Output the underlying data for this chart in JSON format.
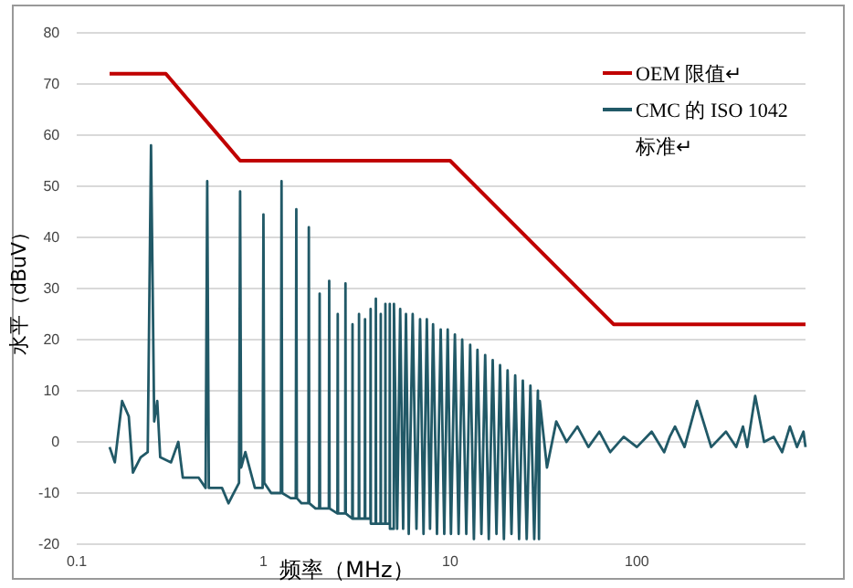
{
  "chart_data": {
    "type": "line",
    "xlabel": "频率（MHz）",
    "ylabel": "水平（dBuV）",
    "log": "x",
    "xlim": [
      0.1,
      800
    ],
    "xticks": [
      0.1,
      1,
      10,
      100
    ],
    "ylim": [
      -20,
      80
    ],
    "yticks": [
      -20,
      -10,
      0,
      10,
      20,
      30,
      40,
      50,
      60,
      70,
      80
    ],
    "grid": "y",
    "legend": "top right",
    "series": [
      {
        "name": "OEM 限值↵",
        "color": "#c00000",
        "x": [
          0.15,
          0.3,
          0.75,
          10,
          75,
          800
        ],
        "values": [
          72,
          72,
          55,
          55,
          23,
          23
        ]
      },
      {
        "name": "CMC 的 ISO 1042 标准↵",
        "color": "#215967",
        "x": [
          0.15,
          0.16,
          0.175,
          0.19,
          0.2,
          0.22,
          0.24,
          0.25,
          0.26,
          0.27,
          0.28,
          0.32,
          0.35,
          0.37,
          0.45,
          0.49,
          0.5,
          0.51,
          0.6,
          0.65,
          0.74,
          0.75,
          0.76,
          0.8,
          0.9,
          0.99,
          1.0,
          1.01,
          1.1,
          1.24,
          1.25,
          1.26,
          1.4,
          1.49,
          1.5,
          1.51,
          1.6,
          1.74,
          1.75,
          1.76,
          1.9,
          1.99,
          2.0,
          2.01,
          2.24,
          2.25,
          2.26,
          2.49,
          2.5,
          2.51,
          2.74,
          2.75,
          2.76,
          2.99,
          3.0,
          3.01,
          3.24,
          3.25,
          3.26,
          3.49,
          3.5,
          3.51,
          3.74,
          3.75,
          3.76,
          3.99,
          4.0,
          4.01,
          4.24,
          4.25,
          4.26,
          4.49,
          4.5,
          4.51,
          4.74,
          4.75,
          4.76,
          4.99,
          5.0,
          5.2,
          5.4,
          5.6,
          5.8,
          6.0,
          6.3,
          6.6,
          6.9,
          7.2,
          7.5,
          7.8,
          8.1,
          8.5,
          8.9,
          9.3,
          9.7,
          10.1,
          10.6,
          11.1,
          11.6,
          12.2,
          12.8,
          13.4,
          14.0,
          14.7,
          15.4,
          16.1,
          16.9,
          17.7,
          18.5,
          19.4,
          20.3,
          21.3,
          22.3,
          23.4,
          24.5,
          25.7,
          26.9,
          28.2,
          29.5,
          29.9,
          30.2,
          33,
          37,
          42,
          48,
          55,
          63,
          72,
          85,
          100,
          120,
          140,
          150,
          160,
          180,
          210,
          250,
          300,
          340,
          370,
          390,
          430,
          480,
          540,
          600,
          660,
          720,
          780,
          800
        ],
        "values": [
          -1,
          -4,
          8,
          5,
          -6,
          -3,
          -2,
          58,
          4,
          8,
          -3,
          -4,
          0,
          -7,
          -7,
          -9,
          51,
          -9,
          -9,
          -12,
          -8,
          49,
          -5,
          -2,
          -9,
          -9,
          44.5,
          -8,
          -10,
          -10,
          51,
          -10,
          -11,
          -11,
          45.5,
          -11,
          -12,
          -12,
          42,
          -12,
          -13,
          -13,
          29,
          -13,
          -13,
          31.5,
          -13,
          -14,
          25,
          -14,
          -14,
          31,
          -14,
          -15,
          23,
          -15,
          -15,
          25,
          -15,
          -15,
          24,
          -15,
          -15,
          26,
          -16,
          -16,
          28,
          -16,
          -16,
          25,
          -16,
          -16,
          27,
          -16,
          -16,
          27,
          -17,
          -17,
          27,
          -17,
          26,
          -17,
          25,
          -18,
          25,
          -17,
          24,
          -18,
          24,
          -17,
          23,
          -18,
          22,
          -18,
          22,
          -18,
          21,
          -18,
          20,
          -18,
          19,
          -19,
          18,
          -18,
          17,
          -19,
          16,
          -18,
          15,
          -19,
          14,
          -18,
          13,
          -19,
          12,
          -19,
          11,
          -19,
          10,
          -19,
          8,
          -5,
          4,
          0,
          3,
          -1,
          2,
          -2,
          1,
          -1,
          2,
          -2,
          1,
          3,
          -1,
          8,
          -1,
          2,
          -1,
          3,
          -1,
          9,
          0,
          1,
          -2,
          3,
          -1,
          2,
          -1
        ]
      }
    ]
  }
}
